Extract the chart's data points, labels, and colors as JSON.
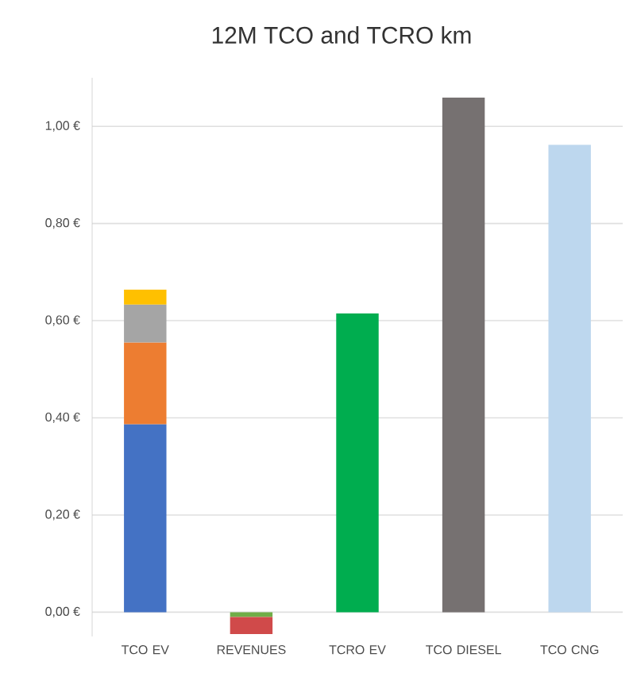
{
  "chart_data": {
    "type": "bar",
    "title": "12M TCO and TCRO km",
    "stacked": true,
    "categories": [
      "TCO EV",
      "REVENUES",
      "TCRO EV",
      "TCO DIESEL",
      "TCO CNG"
    ],
    "series": [
      {
        "values": [
          0.387,
          -0.01,
          0.615,
          1.059,
          0.962
        ],
        "colors": [
          "#4472c4",
          "#70ad47",
          "#00ad4f",
          "#767171",
          "#bdd7ee"
        ]
      },
      {
        "values": [
          0.168,
          -0.035,
          null,
          null,
          null
        ],
        "colors": [
          "#ed7d31",
          "#d04a4a",
          null,
          null,
          null
        ]
      },
      {
        "values": [
          0.078,
          null,
          null,
          null,
          null
        ],
        "colors": [
          "#a5a5a5",
          null,
          null,
          null,
          null
        ]
      },
      {
        "values": [
          0.031,
          null,
          null,
          null,
          null
        ],
        "colors": [
          "#ffc000",
          null,
          null,
          null,
          null
        ]
      }
    ],
    "ylim": [
      -0.05,
      1.1
    ],
    "yticks": [
      {
        "value": 0,
        "label": "0,00 €"
      },
      {
        "value": 0.2,
        "label": "0,20 €"
      },
      {
        "value": 0.4,
        "label": "0,40 €"
      },
      {
        "value": 0.6,
        "label": "0,60 €"
      },
      {
        "value": 0.8,
        "label": "0,80 €"
      },
      {
        "value": 1.0,
        "label": "1,00 €"
      }
    ],
    "grid": "y"
  }
}
